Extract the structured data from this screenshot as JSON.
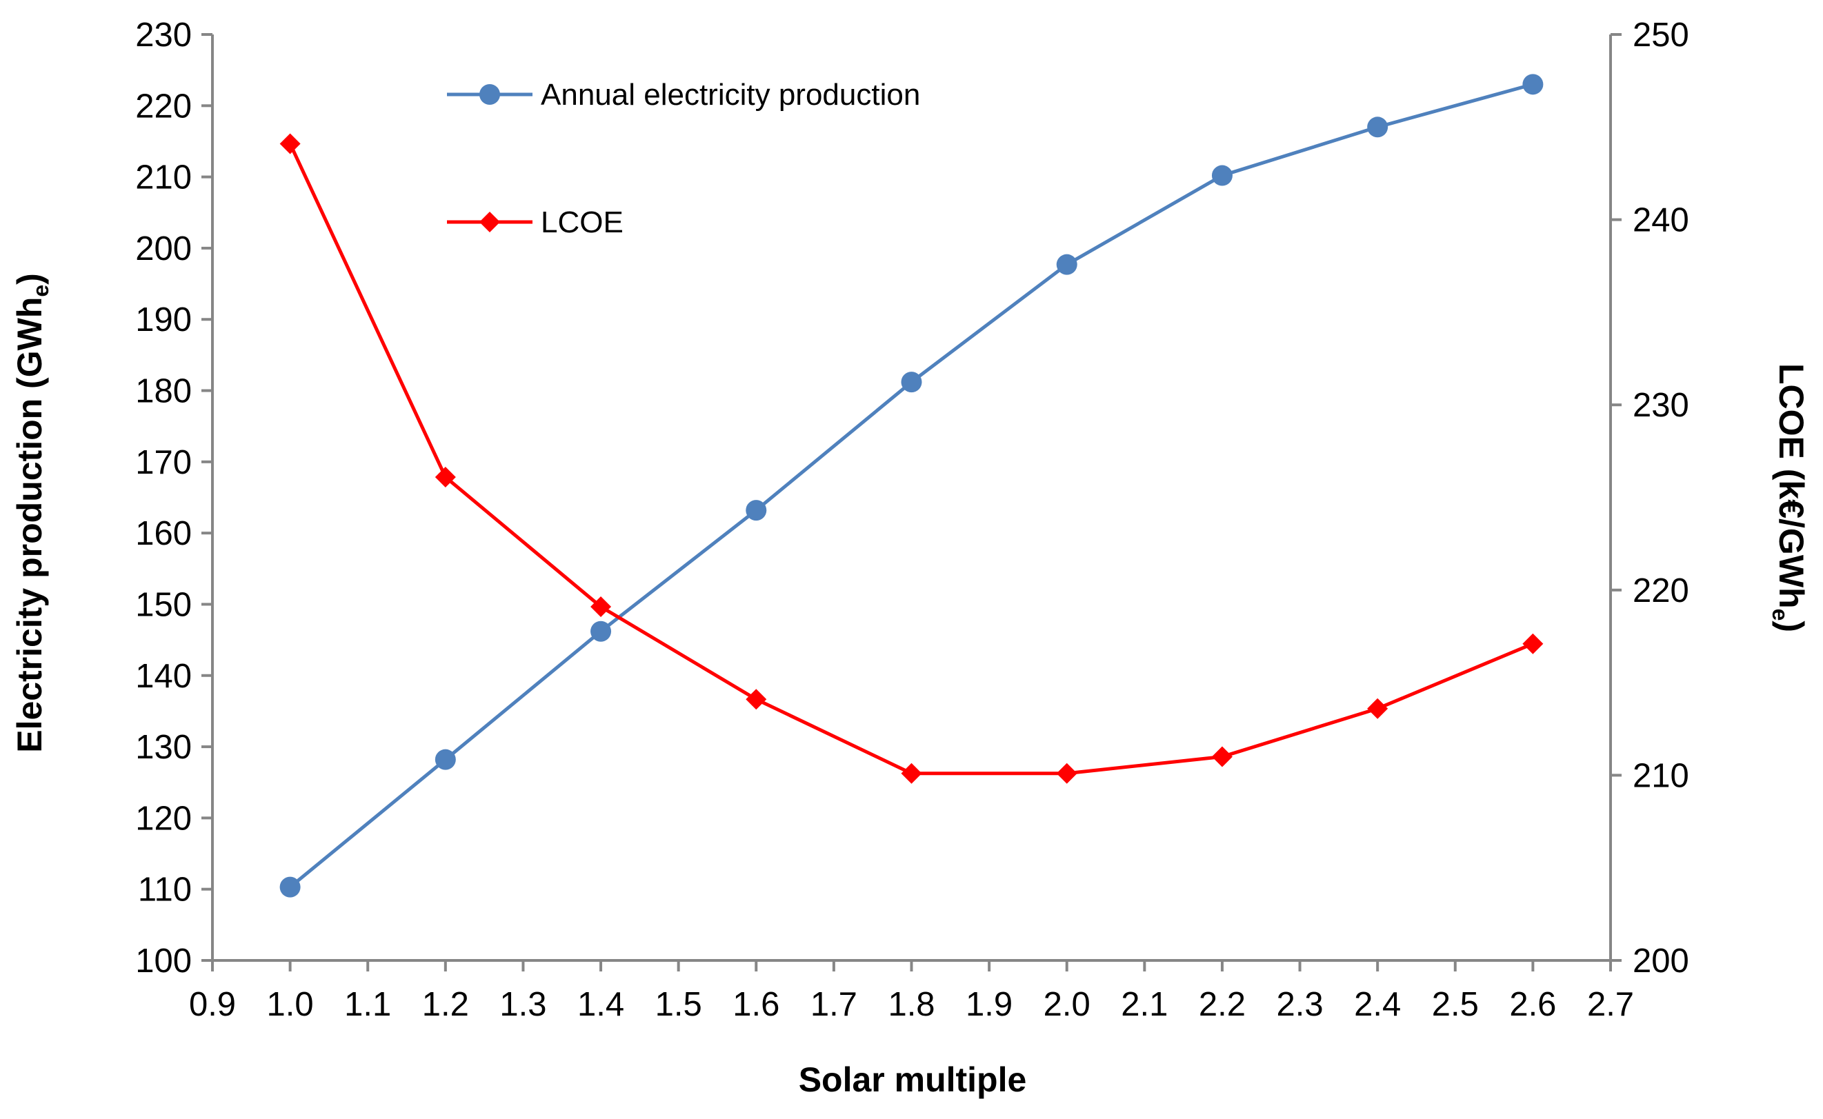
{
  "chart_data": {
    "type": "line",
    "title": "",
    "xlabel": "Solar multiple",
    "ylabel": {
      "main": "Electricity production (GWh",
      "sub": "e",
      "close": ")"
    },
    "y2label": {
      "main": "LCOE (k€/GWh",
      "sub": "e",
      "close": ")"
    },
    "xlim": [
      0.9,
      2.7
    ],
    "ylim": [
      100,
      230
    ],
    "y2lim": [
      200,
      250
    ],
    "x_ticks": [
      "0.9",
      "1.0",
      "1.1",
      "1.2",
      "1.3",
      "1.4",
      "1.5",
      "1.6",
      "1.7",
      "1.8",
      "1.9",
      "2.0",
      "2.1",
      "2.2",
      "2.3",
      "2.4",
      "2.5",
      "2.6",
      "2.7"
    ],
    "y_ticks": [
      "100",
      "110",
      "120",
      "130",
      "140",
      "150",
      "160",
      "170",
      "180",
      "190",
      "200",
      "210",
      "220",
      "230"
    ],
    "y2_ticks": [
      "200",
      "210",
      "220",
      "230",
      "240",
      "250"
    ],
    "grid": false,
    "legend_position": "top-center",
    "series": [
      {
        "name": "Annual electricity production",
        "axis": "left",
        "color": "#4f81bd",
        "marker": "circle",
        "x": [
          1.0,
          1.2,
          1.4,
          1.6,
          1.8,
          2.0,
          2.2,
          2.4,
          2.6
        ],
        "y": [
          110.3,
          128.2,
          146.2,
          163.2,
          181.2,
          197.7,
          210.2,
          217.0,
          223.0
        ]
      },
      {
        "name": "LCOE",
        "axis": "right",
        "color": "#ff0000",
        "marker": "diamond",
        "x": [
          1.0,
          1.2,
          1.4,
          1.6,
          1.8,
          2.0,
          2.2,
          2.4,
          2.6
        ],
        "y": [
          244.1,
          226.1,
          219.1,
          214.1,
          210.1,
          210.1,
          211.0,
          213.6,
          217.1
        ]
      }
    ]
  }
}
